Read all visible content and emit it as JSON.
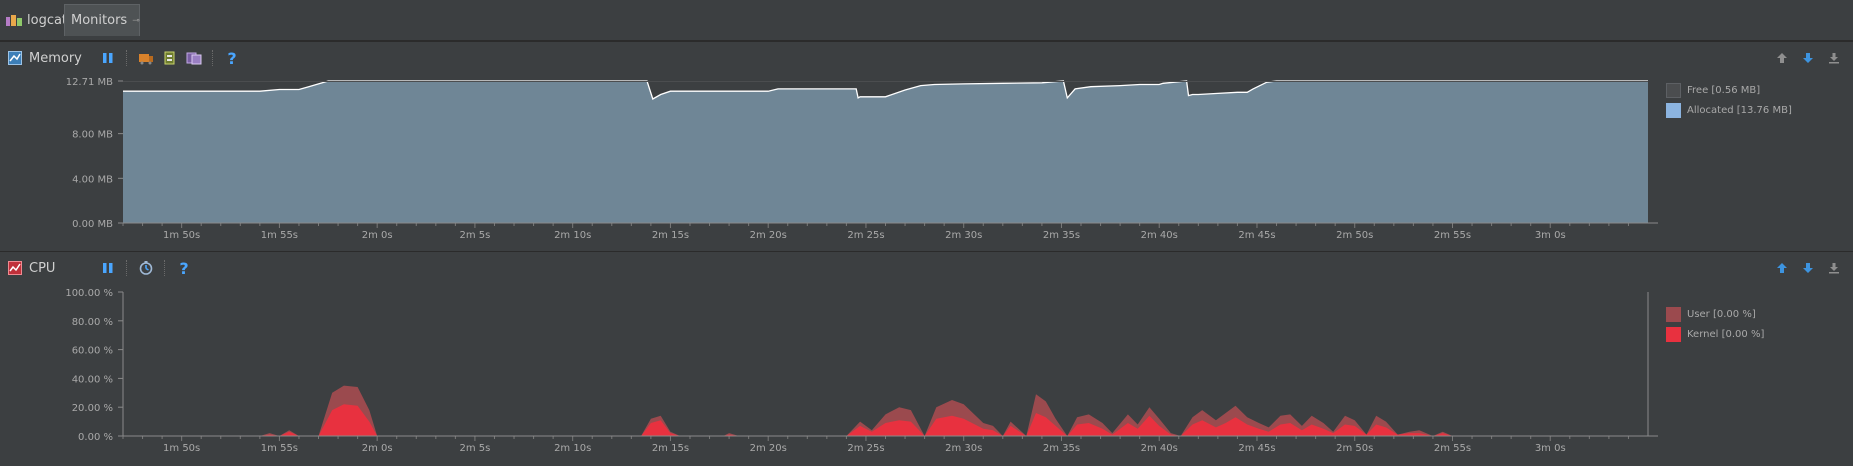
{
  "tabs": [
    {
      "label": "logcat",
      "icon": "android-logcat-icon"
    },
    {
      "label": "Monitors",
      "icon": "pin-icon",
      "active": true
    }
  ],
  "memory": {
    "title": "Memory",
    "colors": {
      "allocated": "#8ea3b5",
      "fill": "#6f8696",
      "free": "#4b4d4f",
      "line": "#ffffff"
    },
    "legend": [
      {
        "label": "Free [0.56 MB]",
        "color": "#4b4d4f"
      },
      {
        "label": "Allocated [13.76 MB]",
        "color": "#8cb4e0"
      }
    ],
    "chart_data": {
      "type": "area",
      "title": "",
      "ylabel": "",
      "ylim": [
        0,
        12.71
      ],
      "yticks": [
        {
          "value": 0,
          "label": "0.00 MB"
        },
        {
          "value": 4,
          "label": "4.00 MB"
        },
        {
          "value": 8,
          "label": "8.00 MB"
        },
        {
          "value": 12.71,
          "label": "12.71 MB"
        }
      ],
      "xlim": [
        107,
        185
      ],
      "xticks": [
        {
          "value": 110,
          "label": "1m 50s"
        },
        {
          "value": 115,
          "label": "1m 55s"
        },
        {
          "value": 120,
          "label": "2m 0s"
        },
        {
          "value": 125,
          "label": "2m 5s"
        },
        {
          "value": 130,
          "label": "2m 10s"
        },
        {
          "value": 135,
          "label": "2m 15s"
        },
        {
          "value": 140,
          "label": "2m 20s"
        },
        {
          "value": 145,
          "label": "2m 25s"
        },
        {
          "value": 150,
          "label": "2m 30s"
        },
        {
          "value": 155,
          "label": "2m 35s"
        },
        {
          "value": 160,
          "label": "2m 40s"
        },
        {
          "value": 165,
          "label": "2m 45s"
        },
        {
          "value": 170,
          "label": "2m 50s"
        },
        {
          "value": 175,
          "label": "2m 55s"
        },
        {
          "value": 180,
          "label": "3m 0s"
        }
      ],
      "series": [
        {
          "x": [
            107,
            114,
            115,
            116,
            116.5,
            117.5,
            119,
            130,
            133.8,
            134.1,
            134.5,
            135,
            136,
            140,
            140.5,
            144.5,
            144.6,
            144.7,
            145,
            146,
            147,
            147.8,
            148.5,
            150,
            152,
            154,
            155.1,
            155.3,
            155.7,
            156.5,
            158,
            159,
            160,
            160.2,
            161.4,
            161.5,
            161.7,
            162,
            163,
            164,
            164.5,
            164.8,
            165.5,
            166,
            167,
            168,
            168.7,
            169.5,
            170,
            170.5,
            172,
            185
          ],
          "y": [
            11.8,
            11.8,
            11.95,
            11.95,
            12.2,
            12.71,
            12.71,
            12.71,
            12.71,
            11.1,
            11.5,
            11.8,
            11.8,
            11.8,
            12.0,
            12.0,
            11.2,
            11.3,
            11.3,
            11.3,
            11.9,
            12.3,
            12.4,
            12.45,
            12.5,
            12.55,
            12.71,
            11.2,
            12.0,
            12.2,
            12.3,
            12.4,
            12.4,
            12.5,
            12.71,
            11.4,
            11.5,
            11.5,
            11.6,
            11.7,
            11.7,
            12.0,
            12.6,
            12.71,
            12.71,
            12.71,
            12.71,
            12.71,
            12.71,
            12.71,
            12.71,
            12.71
          ]
        }
      ]
    }
  },
  "cpu": {
    "title": "CPU",
    "colors": {
      "user": "#9b4a4e",
      "kernel": "#e8313f"
    },
    "legend": [
      {
        "label": "User [0.00 %]",
        "color": "#9b4a4e"
      },
      {
        "label": "Kernel [0.00 %]",
        "color": "#e8313f"
      }
    ],
    "chart_data": {
      "type": "area",
      "title": "",
      "ylabel": "",
      "ylim": [
        0,
        100
      ],
      "yticks": [
        {
          "value": 0,
          "label": "0.00 %"
        },
        {
          "value": 20,
          "label": "20.00 %"
        },
        {
          "value": 40,
          "label": "40.00 %"
        },
        {
          "value": 60,
          "label": "60.00 %"
        },
        {
          "value": 80,
          "label": "80.00 %"
        },
        {
          "value": 100,
          "label": "100.00 %"
        }
      ],
      "xlim": [
        107,
        185
      ],
      "xticks": [
        {
          "value": 110,
          "label": "1m 50s"
        },
        {
          "value": 115,
          "label": "1m 55s"
        },
        {
          "value": 120,
          "label": "2m 0s"
        },
        {
          "value": 125,
          "label": "2m 5s"
        },
        {
          "value": 130,
          "label": "2m 10s"
        },
        {
          "value": 135,
          "label": "2m 15s"
        },
        {
          "value": 140,
          "label": "2m 20s"
        },
        {
          "value": 145,
          "label": "2m 25s"
        },
        {
          "value": 150,
          "label": "2m 30s"
        },
        {
          "value": 155,
          "label": "2m 35s"
        },
        {
          "value": 160,
          "label": "2m 40s"
        },
        {
          "value": 165,
          "label": "2m 45s"
        },
        {
          "value": 170,
          "label": "2m 50s"
        },
        {
          "value": 175,
          "label": "2m 55s"
        },
        {
          "value": 180,
          "label": "3m 0s"
        }
      ],
      "series": [
        {
          "name": "User",
          "x": [
            107,
            114.0,
            114.5,
            115.0,
            115.5,
            116.0,
            117.0,
            117.7,
            118.3,
            119.0,
            119.6,
            120.0,
            120.5,
            133.5,
            134.0,
            134.5,
            135.0,
            135.5,
            137.7,
            138.0,
            138.5,
            144.0,
            144.7,
            145.3,
            146.0,
            146.7,
            147.3,
            148.0,
            148.6,
            149.4,
            150.0,
            151.0,
            151.5,
            152.0,
            152.4,
            153.2,
            153.7,
            154.2,
            154.7,
            155.3,
            155.8,
            156.4,
            157.1,
            157.6,
            158.4,
            158.9,
            159.5,
            160.0,
            160.6,
            161.1,
            161.7,
            162.2,
            162.9,
            163.4,
            163.9,
            164.5,
            165.1,
            165.6,
            166.2,
            166.7,
            167.3,
            167.8,
            168.4,
            168.9,
            169.5,
            170.0,
            170.6,
            171.1,
            171.6,
            172.2,
            172.8,
            173.3,
            174.0,
            174.5,
            175.0,
            185
          ],
          "y": [
            0,
            0,
            2,
            0,
            4,
            0,
            0,
            30,
            35,
            34,
            18,
            0,
            0,
            0,
            12,
            14,
            3,
            0,
            0,
            2,
            0,
            0,
            10,
            4,
            15,
            20,
            18,
            0,
            20,
            25,
            22,
            9,
            7,
            0,
            10,
            0,
            29,
            24,
            12,
            0,
            13,
            15,
            9,
            2,
            15,
            8,
            20,
            12,
            2,
            0,
            13,
            18,
            11,
            16,
            21,
            13,
            9,
            6,
            14,
            15,
            7,
            14,
            9,
            3,
            14,
            11,
            1,
            14,
            10,
            1,
            3,
            4,
            0,
            3,
            0,
            0
          ]
        },
        {
          "name": "Kernel",
          "x": [
            107,
            114.0,
            114.5,
            115.0,
            115.5,
            116.0,
            117.0,
            117.7,
            118.3,
            119.0,
            119.6,
            120.0,
            120.5,
            133.5,
            134.0,
            134.5,
            135.0,
            135.5,
            137.7,
            138.0,
            138.5,
            144.0,
            144.7,
            145.3,
            146.0,
            146.7,
            147.3,
            148.0,
            148.6,
            149.4,
            150.0,
            151.0,
            151.5,
            152.0,
            152.4,
            153.2,
            153.7,
            154.2,
            154.7,
            155.3,
            155.8,
            156.4,
            157.1,
            157.6,
            158.4,
            158.9,
            159.5,
            160.0,
            160.6,
            161.1,
            161.7,
            162.2,
            162.9,
            163.4,
            163.9,
            164.5,
            165.1,
            165.6,
            166.2,
            166.7,
            167.3,
            167.8,
            168.4,
            168.9,
            169.5,
            170.0,
            170.6,
            171.1,
            171.6,
            172.2,
            172.8,
            173.3,
            174.0,
            174.5,
            175.0,
            185
          ],
          "y": [
            0,
            0,
            1,
            0,
            3,
            0,
            0,
            18,
            22,
            21,
            10,
            0,
            0,
            0,
            9,
            11,
            2,
            0,
            0,
            1,
            0,
            0,
            7,
            3,
            9,
            11,
            10,
            0,
            12,
            14,
            12,
            5,
            4,
            0,
            7,
            0,
            16,
            13,
            7,
            0,
            8,
            9,
            5,
            1,
            9,
            5,
            14,
            7,
            1,
            0,
            8,
            11,
            6,
            9,
            13,
            8,
            5,
            3,
            8,
            9,
            4,
            8,
            5,
            2,
            8,
            7,
            1,
            8,
            6,
            1,
            2,
            2,
            0,
            2,
            0,
            0
          ]
        }
      ]
    }
  }
}
